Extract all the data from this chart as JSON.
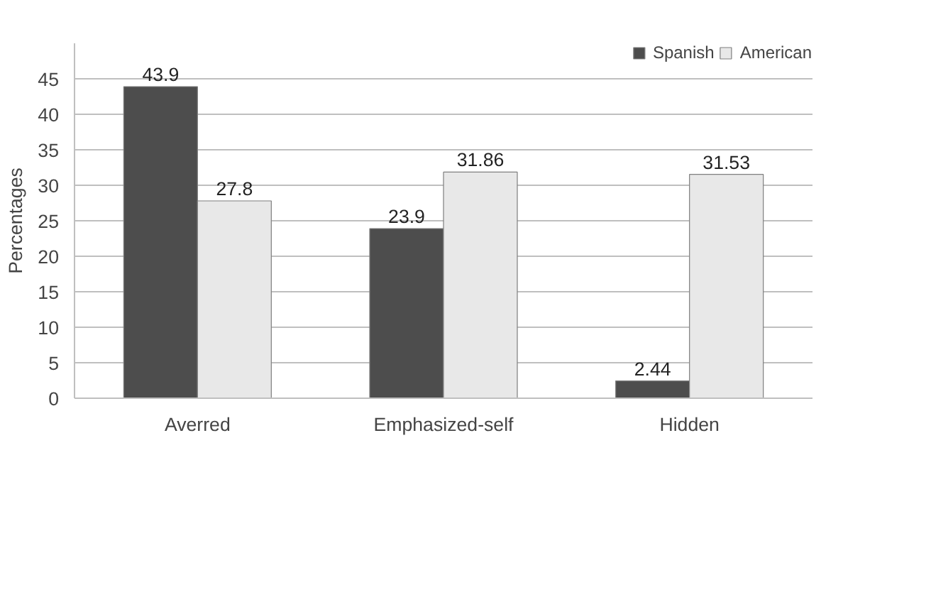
{
  "chart_data": {
    "type": "bar",
    "ylabel": "Percentages",
    "categories": [
      "Averred",
      "Emphasized-self",
      "Hidden"
    ],
    "series": [
      {
        "name": "Spanish",
        "color": "#4d4d4d",
        "values": [
          43.9,
          23.9,
          2.44
        ]
      },
      {
        "name": "American",
        "color": "#e8e8e8",
        "values": [
          27.8,
          31.86,
          31.53
        ]
      }
    ],
    "ylim": [
      0,
      50
    ],
    "yticks": [
      0,
      5,
      10,
      15,
      20,
      25,
      30,
      35,
      40,
      45
    ],
    "grid": "y",
    "legend": "top right",
    "data_labels": true
  }
}
